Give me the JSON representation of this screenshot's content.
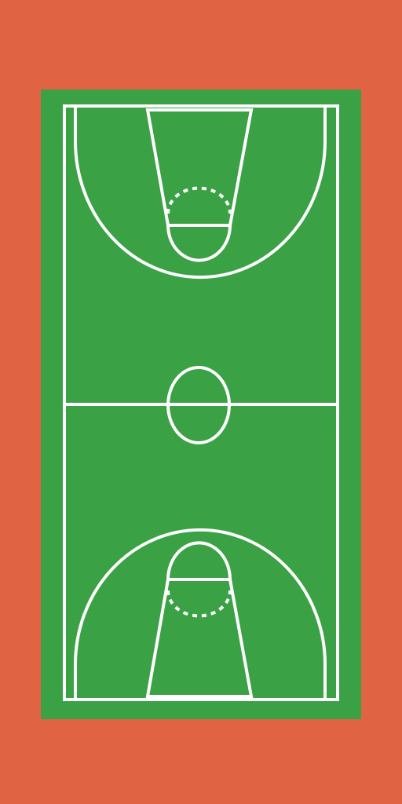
{
  "colors": {
    "surround": "#E06444",
    "court": "#3AA245",
    "lines": "#FFFFFF"
  }
}
